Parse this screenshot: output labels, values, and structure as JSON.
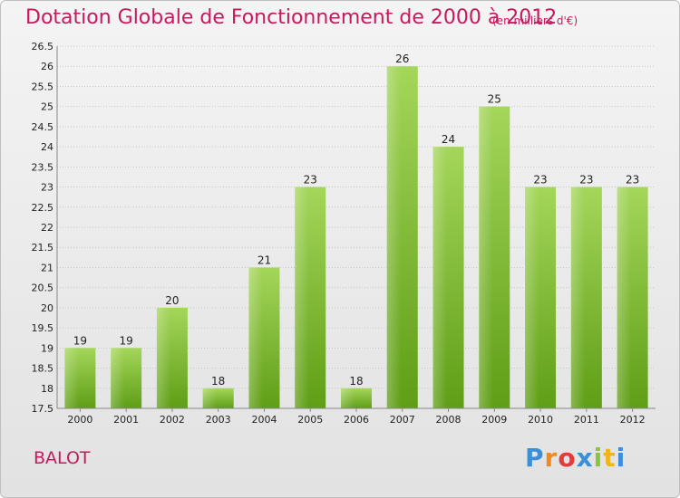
{
  "header": {
    "title": "Dotation Globale de Fonctionnement de 2000 à 2012",
    "subtitle": "(en milliers d'€)"
  },
  "footer": {
    "commune": "BALOT",
    "logo_text": "Proxiti"
  },
  "colors": {
    "accent": "#c8195f",
    "bar_light": "#9fd152",
    "bar_dark": "#5f9e16"
  },
  "chart_data": {
    "type": "bar",
    "categories": [
      "2000",
      "2001",
      "2002",
      "2003",
      "2004",
      "2005",
      "2006",
      "2007",
      "2008",
      "2009",
      "2010",
      "2011",
      "2012"
    ],
    "values": [
      19,
      19,
      20,
      18,
      21,
      23,
      18,
      26,
      24,
      25,
      23,
      23,
      23
    ],
    "data_labels": [
      "19",
      "19",
      "20",
      "18",
      "21",
      "23",
      "18",
      "26",
      "24",
      "25",
      "23",
      "23",
      "23"
    ],
    "title": "Dotation Globale de Fonctionnement de 2000 à 2012",
    "subtitle": "(en milliers d'€)",
    "xlabel": "",
    "ylabel": "",
    "ylim": [
      17.5,
      26.5
    ],
    "yticks": [
      "17.5",
      "18",
      "18.5",
      "19",
      "19.5",
      "20",
      "20.5",
      "21",
      "21.5",
      "22",
      "22.5",
      "23",
      "23.5",
      "24",
      "24.5",
      "25",
      "25.5",
      "26",
      "26.5"
    ],
    "grid": true,
    "legend": "none"
  }
}
